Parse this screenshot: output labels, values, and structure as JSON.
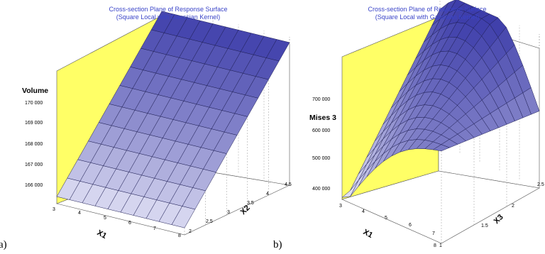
{
  "chart_data": [
    {
      "type": "surface",
      "panel": "a)",
      "title": "Cross-section Plane of Response Surface",
      "subtitle": "(Square Local with Gaussian Kernel)",
      "zlabel": "Volume",
      "xlabel": "X1",
      "ylabel": "X2",
      "x_ticks": [
        "3",
        "4",
        "5",
        "6",
        "7",
        "8"
      ],
      "y_ticks": [
        "2",
        "2.5",
        "3",
        "3.5",
        "4",
        "4.5"
      ],
      "z_ticks": [
        "166 000",
        "167 000",
        "168 000",
        "169 000",
        "170 000"
      ],
      "xlim": [
        3,
        8
      ],
      "ylim": [
        2,
        4.5
      ],
      "zlim": [
        165500,
        170800
      ],
      "surface": "plane",
      "z_at_corners": {
        "x3_y2": 165750,
        "x8_y2": 165750,
        "x3_y4.5": 170600,
        "x8_y4.5": 170600
      },
      "grid": [
        11,
        11
      ],
      "colors": {
        "back_wall": "#ffff66",
        "surface_low": "#f0f0fb",
        "surface_high": "#3a3aa8"
      }
    },
    {
      "type": "surface",
      "panel": "b)",
      "title": "Cross-section Plane of Response Surface",
      "subtitle": "(Square Local with Gaussian Kernel)",
      "zlabel": "Mises 3",
      "xlabel": "X1",
      "ylabel": "X3",
      "x_ticks": [
        "3",
        "4",
        "5",
        "6",
        "7",
        "8"
      ],
      "y_ticks": [
        "1",
        "1.5",
        "2",
        "2.5"
      ],
      "z_ticks": [
        "400 000",
        "500 000",
        "600 000",
        "700 000"
      ],
      "xlim": [
        3,
        8
      ],
      "ylim": [
        1,
        2.5
      ],
      "zlim": [
        360000,
        760000
      ],
      "grid": [
        13,
        13
      ],
      "colors": {
        "back_wall": "#ffff66",
        "surface_low": "#f0f0fb",
        "surface_high": "#3a3aa8"
      }
    }
  ]
}
